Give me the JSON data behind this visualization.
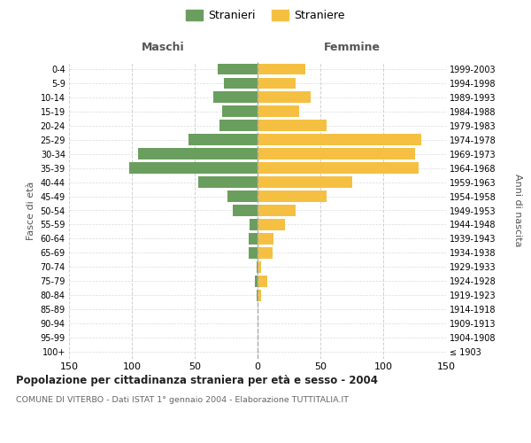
{
  "age_groups": [
    "100+",
    "95-99",
    "90-94",
    "85-89",
    "80-84",
    "75-79",
    "70-74",
    "65-69",
    "60-64",
    "55-59",
    "50-54",
    "45-49",
    "40-44",
    "35-39",
    "30-34",
    "25-29",
    "20-24",
    "15-19",
    "10-14",
    "5-9",
    "0-4"
  ],
  "birth_years": [
    "≤ 1903",
    "1904-1908",
    "1909-1913",
    "1914-1918",
    "1919-1923",
    "1924-1928",
    "1929-1933",
    "1934-1938",
    "1939-1943",
    "1944-1948",
    "1949-1953",
    "1954-1958",
    "1959-1963",
    "1964-1968",
    "1969-1973",
    "1974-1978",
    "1979-1983",
    "1984-1988",
    "1989-1993",
    "1994-1998",
    "1999-2003"
  ],
  "males": [
    0,
    0,
    0,
    0,
    1,
    2,
    1,
    7,
    7,
    6,
    20,
    24,
    47,
    102,
    95,
    55,
    30,
    28,
    35,
    27,
    32
  ],
  "females": [
    0,
    0,
    0,
    0,
    3,
    8,
    3,
    12,
    13,
    22,
    30,
    55,
    75,
    128,
    125,
    130,
    55,
    33,
    42,
    30,
    38
  ],
  "male_color": "#6a9e5e",
  "female_color": "#f5c042",
  "background_color": "#ffffff",
  "grid_color": "#cccccc",
  "title": "Popolazione per cittadinanza straniera per età e sesso - 2004",
  "subtitle": "COMUNE DI VITERBO - Dati ISTAT 1° gennaio 2004 - Elaborazione TUTTITALIA.IT",
  "xlabel_left": "Maschi",
  "xlabel_right": "Femmine",
  "ylabel_left": "Fasce di età",
  "ylabel_right": "Anni di nascita",
  "legend_male": "Stranieri",
  "legend_female": "Straniere",
  "xlim": 150,
  "bar_height": 0.8
}
